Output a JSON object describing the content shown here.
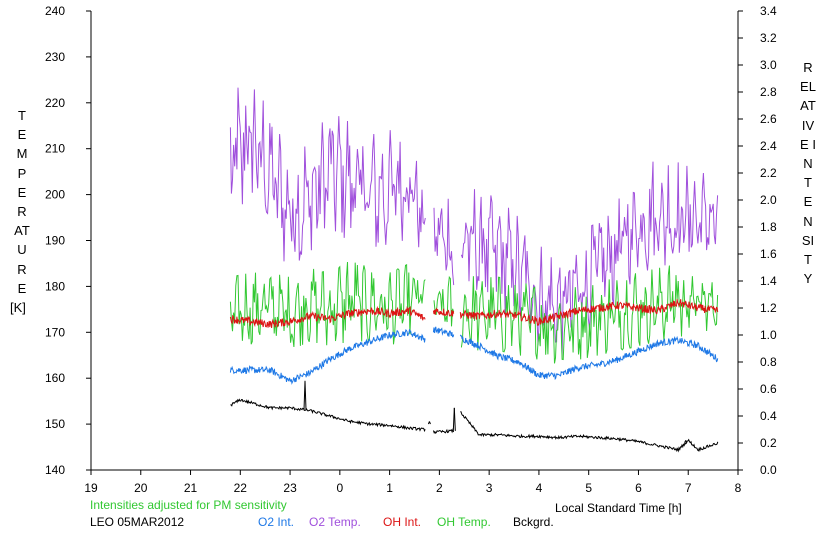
{
  "chart_data": {
    "type": "line",
    "title": "",
    "xlabel": "Local Standard Time [h]",
    "ylabel_left": "TEMPERATURE",
    "ylabel_left_unit": "[K]",
    "ylabel_right": "RELATIVE INTENSITY",
    "x_ticks": [
      "19",
      "20",
      "21",
      "22",
      "23",
      "0",
      "1",
      "2",
      "3",
      "4",
      "5",
      "6",
      "7",
      "8"
    ],
    "xlim": [
      19,
      32
    ],
    "ylim_left": [
      140,
      240
    ],
    "ylim_right": [
      0.0,
      3.4
    ],
    "y_ticks_left": [
      "140",
      "150",
      "160",
      "170",
      "180",
      "190",
      "200",
      "210",
      "220",
      "230",
      "240"
    ],
    "y_ticks_right": [
      "0.0",
      "0.2",
      "0.4",
      "0.6",
      "0.8",
      "1.0",
      "1.2",
      "1.4",
      "1.6",
      "1.8",
      "2.0",
      "2.2",
      "2.4",
      "2.6",
      "2.8",
      "3.0",
      "3.2",
      "3.4"
    ],
    "grid": false,
    "note": "Intensities adjusted for PM sensitivity",
    "station": "LEO 05MAR2012",
    "gaps": [
      [
        25.72,
        25.88
      ],
      [
        26.3,
        26.42
      ]
    ],
    "series": [
      {
        "name": "O2 Int.",
        "axis": "right",
        "color": "#1e78e6",
        "x": [
          21.8,
          22.2,
          22.6,
          23.0,
          23.4,
          23.8,
          24.2,
          24.6,
          25.0,
          25.4,
          25.7,
          25.9,
          26.3,
          26.8,
          27.2,
          27.6,
          28.0,
          28.4,
          28.8,
          29.2,
          29.6,
          30.0,
          30.4,
          30.8,
          31.2,
          31.6
        ],
        "values": [
          0.74,
          0.74,
          0.74,
          0.66,
          0.72,
          0.82,
          0.9,
          0.95,
          1.0,
          1.02,
          0.97,
          1.04,
          1.0,
          0.92,
          0.84,
          0.8,
          0.7,
          0.7,
          0.76,
          0.78,
          0.82,
          0.88,
          0.94,
          0.96,
          0.92,
          0.82
        ]
      },
      {
        "name": "O2 Temp.",
        "axis": "left",
        "x": [
          21.8,
          22.2,
          22.6,
          23.0,
          23.4,
          23.8,
          24.2,
          24.6,
          25.0,
          25.4,
          25.7,
          25.9,
          26.3,
          26.8,
          27.2,
          27.6,
          28.0,
          28.4,
          28.8,
          29.2,
          29.6,
          30.0,
          30.4,
          30.8,
          31.2,
          31.6
        ],
        "values": [
          205,
          212,
          204,
          196,
          199,
          205,
          203,
          200,
          201,
          203,
          193,
          192,
          189,
          189,
          187,
          183,
          178,
          175,
          179,
          184,
          188,
          194,
          196,
          195,
          195,
          194
        ],
        "amplitude": [
          16,
          15,
          13,
          13,
          13,
          13,
          13,
          13,
          13,
          12,
          6,
          6,
          13,
          12,
          12,
          12,
          11,
          11,
          11,
          11,
          11,
          11,
          12,
          12,
          11,
          7
        ]
      },
      {
        "name": "OH Int.",
        "axis": "right",
        "color": "#dc1414",
        "x": [
          21.8,
          22.2,
          22.6,
          23.0,
          23.4,
          23.8,
          24.2,
          24.6,
          25.0,
          25.4,
          25.7,
          25.9,
          26.3,
          26.8,
          27.2,
          27.6,
          28.0,
          28.4,
          28.8,
          29.2,
          29.6,
          30.0,
          30.4,
          30.8,
          31.2,
          31.6
        ],
        "values": [
          1.12,
          1.1,
          1.08,
          1.1,
          1.14,
          1.12,
          1.16,
          1.18,
          1.16,
          1.18,
          1.12,
          1.18,
          1.16,
          1.14,
          1.16,
          1.14,
          1.1,
          1.14,
          1.18,
          1.2,
          1.22,
          1.2,
          1.18,
          1.24,
          1.2,
          1.18
        ]
      },
      {
        "name": "OH Temp.",
        "axis": "left",
        "color": "#32c832",
        "x": [
          21.8,
          22.2,
          22.6,
          23.0,
          23.4,
          23.8,
          24.2,
          24.6,
          25.0,
          25.4,
          25.7,
          25.9,
          26.3,
          26.8,
          27.2,
          27.6,
          28.0,
          28.4,
          28.8,
          29.2,
          29.6,
          30.0,
          30.4,
          30.8,
          31.2,
          31.6
        ],
        "values": [
          174,
          175,
          176,
          174,
          176,
          175,
          177,
          176,
          175,
          177,
          178,
          176,
          175,
          174,
          174,
          173,
          172,
          171,
          172,
          173,
          174,
          175,
          176,
          177,
          176,
          176
        ],
        "amplitude": [
          8,
          8,
          7,
          8,
          8,
          8,
          9,
          8,
          8,
          8,
          4,
          3,
          8,
          8,
          8,
          8,
          8,
          8,
          8,
          8,
          8,
          8,
          8,
          8,
          7,
          4
        ]
      },
      {
        "name": "Bckgrd.",
        "axis": "right",
        "color": "#000000",
        "x": [
          21.8,
          22.0,
          22.2,
          22.6,
          23.0,
          23.4,
          23.8,
          24.2,
          24.6,
          25.0,
          25.4,
          25.7,
          25.8,
          25.9,
          26.3,
          26.4,
          26.8,
          27.2,
          27.6,
          28.0,
          28.4,
          28.8,
          29.2,
          29.6,
          30.0,
          30.4,
          30.8,
          31.0,
          31.2,
          31.6
        ],
        "values": [
          0.48,
          0.52,
          0.5,
          0.46,
          0.46,
          0.44,
          0.4,
          0.36,
          0.34,
          0.33,
          0.31,
          0.3,
          0.34,
          0.28,
          0.29,
          0.44,
          0.26,
          0.26,
          0.25,
          0.25,
          0.24,
          0.25,
          0.24,
          0.23,
          0.21,
          0.18,
          0.15,
          0.22,
          0.15,
          0.2
        ],
        "spikes": [
          [
            23.3,
            0.66
          ],
          [
            25.8,
            0.36
          ],
          [
            26.3,
            0.46
          ],
          [
            30.95,
            0.22
          ]
        ]
      }
    ]
  },
  "legend": {
    "station": "LEO 05MAR2012",
    "items": [
      {
        "label": "O2 Int.",
        "color": "#1e78e6"
      },
      {
        "label": "O2 Temp.",
        "color": "#a050dc"
      },
      {
        "label": "OH Int.",
        "color": "#dc1414"
      },
      {
        "label": "OH Temp.",
        "color": "#32c832"
      },
      {
        "label": "Bckgrd.",
        "color": "#000000"
      }
    ]
  },
  "colors": {
    "axis": "#000000",
    "note": "#32c832"
  }
}
